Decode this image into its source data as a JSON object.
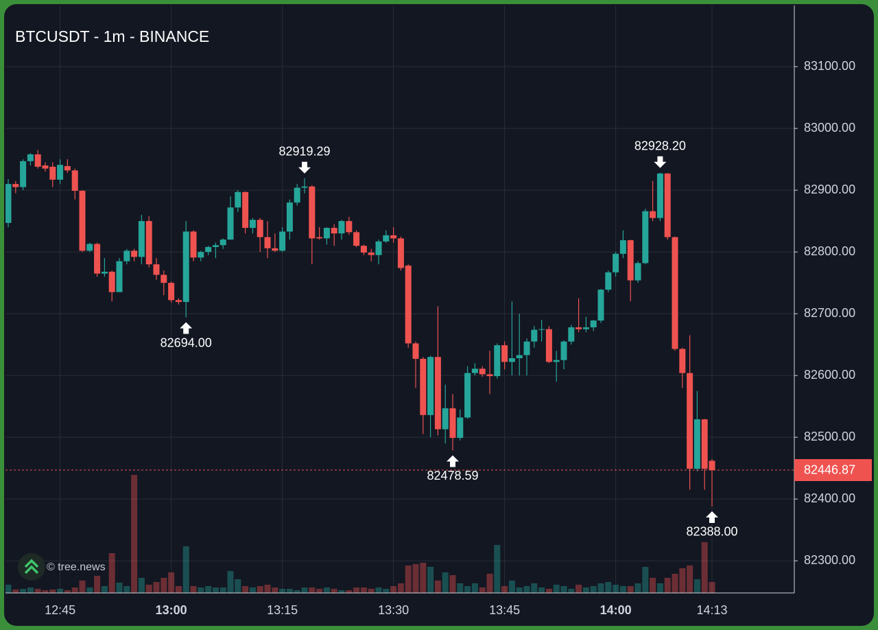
{
  "chart_data": {
    "type": "candlestick",
    "title": "BTCUSDT - 1m - BINANCE",
    "watermark": "© tree.news",
    "categories": [
      null,
      null,
      null,
      null,
      null,
      null,
      null,
      "12:45",
      null,
      null,
      null,
      null,
      null,
      null,
      null,
      null,
      null,
      null,
      null,
      null,
      null,
      null,
      "13:00",
      null,
      null,
      null,
      null,
      null,
      null,
      null,
      null,
      null,
      null,
      null,
      null,
      null,
      null,
      "13:15",
      null,
      null,
      null,
      null,
      null,
      null,
      null,
      null,
      null,
      null,
      null,
      null,
      null,
      null,
      "13:30",
      null,
      null,
      null,
      null,
      null,
      null,
      null,
      null,
      null,
      null,
      null,
      null,
      null,
      null,
      "13:45",
      null,
      null,
      null,
      null,
      null,
      null,
      null,
      null,
      null,
      null,
      null,
      null,
      null,
      null,
      "14:00",
      null,
      null,
      null,
      null,
      null,
      null,
      null,
      null,
      null,
      null,
      null,
      null,
      "14:13"
    ],
    "open": [
      82847,
      82910,
      82905,
      82947,
      82958,
      82940,
      82938,
      82917,
      82939,
      82932,
      82899,
      82802,
      82813,
      82765,
      82768,
      82735,
      82785,
      82802,
      82792,
      82850,
      82780,
      82763,
      82750,
      82722,
      82719,
      82833,
      82791,
      82800,
      82808,
      82811,
      82820,
      82872,
      82897,
      82839,
      82852,
      82824,
      82806,
      82802,
      82833,
      82880,
      82904,
      82906,
      82824,
      82822,
      82839,
      82830,
      82850,
      82832,
      82810,
      82799,
      82795,
      82817,
      82827,
      82822,
      82778,
      82652,
      82627,
      82536,
      82630,
      82513,
      82547,
      82499,
      82532,
      82604,
      82611,
      82602,
      82599,
      82649,
      82622,
      82628,
      82633,
      82655,
      82674,
      82675,
      82622,
      82625,
      82655,
      82678,
      82675,
      82678,
      82689,
      82739,
      82767,
      82797,
      82819,
      82754,
      82782,
      82866,
      82855,
      82927,
      82824,
      82643,
      82604,
      82449,
      82529,
      82462
    ],
    "high": [
      82918,
      82915,
      82950,
      82960,
      82965,
      82945,
      82945,
      82950,
      82950,
      82935,
      82900,
      82815,
      82815,
      82790,
      82770,
      82790,
      82805,
      82805,
      82860,
      82858,
      82790,
      82770,
      82752,
      82725,
      82850,
      82835,
      82802,
      82810,
      82815,
      82822,
      82890,
      82900,
      82898,
      82855,
      82855,
      82850,
      82830,
      82840,
      82885,
      82910,
      82919.29,
      82908,
      82840,
      82840,
      82845,
      82852,
      82857,
      82835,
      82812,
      82805,
      82820,
      82835,
      82840,
      82825,
      82780,
      82655,
      82630,
      82632,
      82712,
      82585,
      82570,
      82545,
      82615,
      82620,
      82615,
      82640,
      82652,
      82655,
      82720,
      82700,
      82660,
      82680,
      82690,
      82680,
      82640,
      82657,
      82682,
      82725,
      82695,
      82690,
      82740,
      82770,
      82800,
      82835,
      82820,
      82785,
      82870,
      82915,
      82928.2,
      82928,
      82825,
      82645,
      82665,
      82575,
      82530,
      82465
    ],
    "low": [
      82840,
      82895,
      82900,
      82940,
      82935,
      82930,
      82905,
      82910,
      82928,
      82885,
      82800,
      82800,
      82760,
      82760,
      82720,
      82735,
      82780,
      82785,
      82780,
      82775,
      82755,
      82730,
      82718,
      82715,
      82694,
      82785,
      82785,
      82795,
      82790,
      82805,
      82820,
      82865,
      82830,
      82830,
      82800,
      82790,
      82800,
      82800,
      82820,
      82875,
      82895,
      82780,
      82820,
      82812,
      82810,
      82820,
      82828,
      82808,
      82795,
      82785,
      82780,
      82815,
      82815,
      82770,
      82645,
      82580,
      82505,
      82500,
      82503,
      82490,
      82478.59,
      82495,
      82530,
      82600,
      82598,
      82570,
      82595,
      82610,
      82600,
      82600,
      82600,
      82645,
      82655,
      82620,
      82590,
      82610,
      82650,
      82670,
      82670,
      82672,
      82685,
      82735,
      82760,
      82790,
      82720,
      82750,
      82780,
      82850,
      82850,
      82820,
      82640,
      82580,
      82415,
      82445,
      82415,
      82388
    ],
    "close": [
      82910,
      82905,
      82947,
      82958,
      82938,
      82935,
      82917,
      82941,
      82932,
      82899,
      82802,
      82813,
      82765,
      82768,
      82735,
      82785,
      82802,
      82792,
      82850,
      82780,
      82763,
      82750,
      82722,
      82719,
      82833,
      82791,
      82800,
      82808,
      82811,
      82820,
      82872,
      82897,
      82839,
      82852,
      82824,
      82806,
      82802,
      82833,
      82880,
      82904,
      82906,
      82822,
      82822,
      82839,
      82830,
      82850,
      82832,
      82810,
      82799,
      82795,
      82817,
      82827,
      82822,
      82774,
      82652,
      82627,
      82536,
      82630,
      82513,
      82547,
      82499,
      82532,
      82604,
      82611,
      82602,
      82599,
      82649,
      82622,
      82628,
      82633,
      82655,
      82674,
      82675,
      82622,
      82625,
      82655,
      82678,
      82675,
      82678,
      82689,
      82739,
      82767,
      82797,
      82819,
      82754,
      82782,
      82866,
      82855,
      82927,
      82824,
      82643,
      82604,
      82449,
      82529,
      82449,
      82446.87
    ],
    "volume": [
      12,
      5,
      6,
      8,
      6,
      4,
      5,
      6,
      4,
      8,
      18,
      8,
      25,
      10,
      58,
      15,
      10,
      172,
      22,
      12,
      16,
      22,
      30,
      10,
      68,
      10,
      8,
      10,
      8,
      8,
      32,
      20,
      10,
      8,
      10,
      12,
      8,
      6,
      6,
      4,
      8,
      8,
      6,
      8,
      6,
      4,
      4,
      8,
      8,
      6,
      8,
      6,
      10,
      14,
      40,
      42,
      44,
      38,
      18,
      30,
      26,
      14,
      10,
      14,
      8,
      28,
      70,
      10,
      18,
      8,
      10,
      14,
      8,
      6,
      12,
      10,
      6,
      12,
      8,
      10,
      14,
      16,
      12,
      10,
      10,
      14,
      38,
      22,
      14,
      22,
      28,
      36,
      40,
      20,
      74,
      16
    ],
    "up_color": "#26a69a",
    "down_color": "#ef5350",
    "ylim": [
      82248,
      83199
    ],
    "yticks": [
      {
        "value": 82300,
        "label": "82300.00"
      },
      {
        "value": 82400,
        "label": "82400.00"
      },
      {
        "value": 82500,
        "label": "82500.00"
      },
      {
        "value": 82600,
        "label": "82600.00"
      },
      {
        "value": 82700,
        "label": "82700.00"
      },
      {
        "value": 82800,
        "label": "82800.00"
      },
      {
        "value": 82900,
        "label": "82900.00"
      },
      {
        "value": 83000,
        "label": "83000.00"
      },
      {
        "value": 83100,
        "label": "83100.00"
      }
    ],
    "grid": true,
    "last_price": 82446.87,
    "annotations": [
      {
        "kind": "high",
        "value": 82919.29
      },
      {
        "kind": "low",
        "value": 82694,
        "label": "82694.00"
      },
      {
        "kind": "low",
        "value": 82478.59
      },
      {
        "kind": "high",
        "value": 82928.2,
        "label": "82928.20"
      },
      {
        "kind": "low",
        "value": 82388,
        "label": "82388.00"
      }
    ]
  }
}
